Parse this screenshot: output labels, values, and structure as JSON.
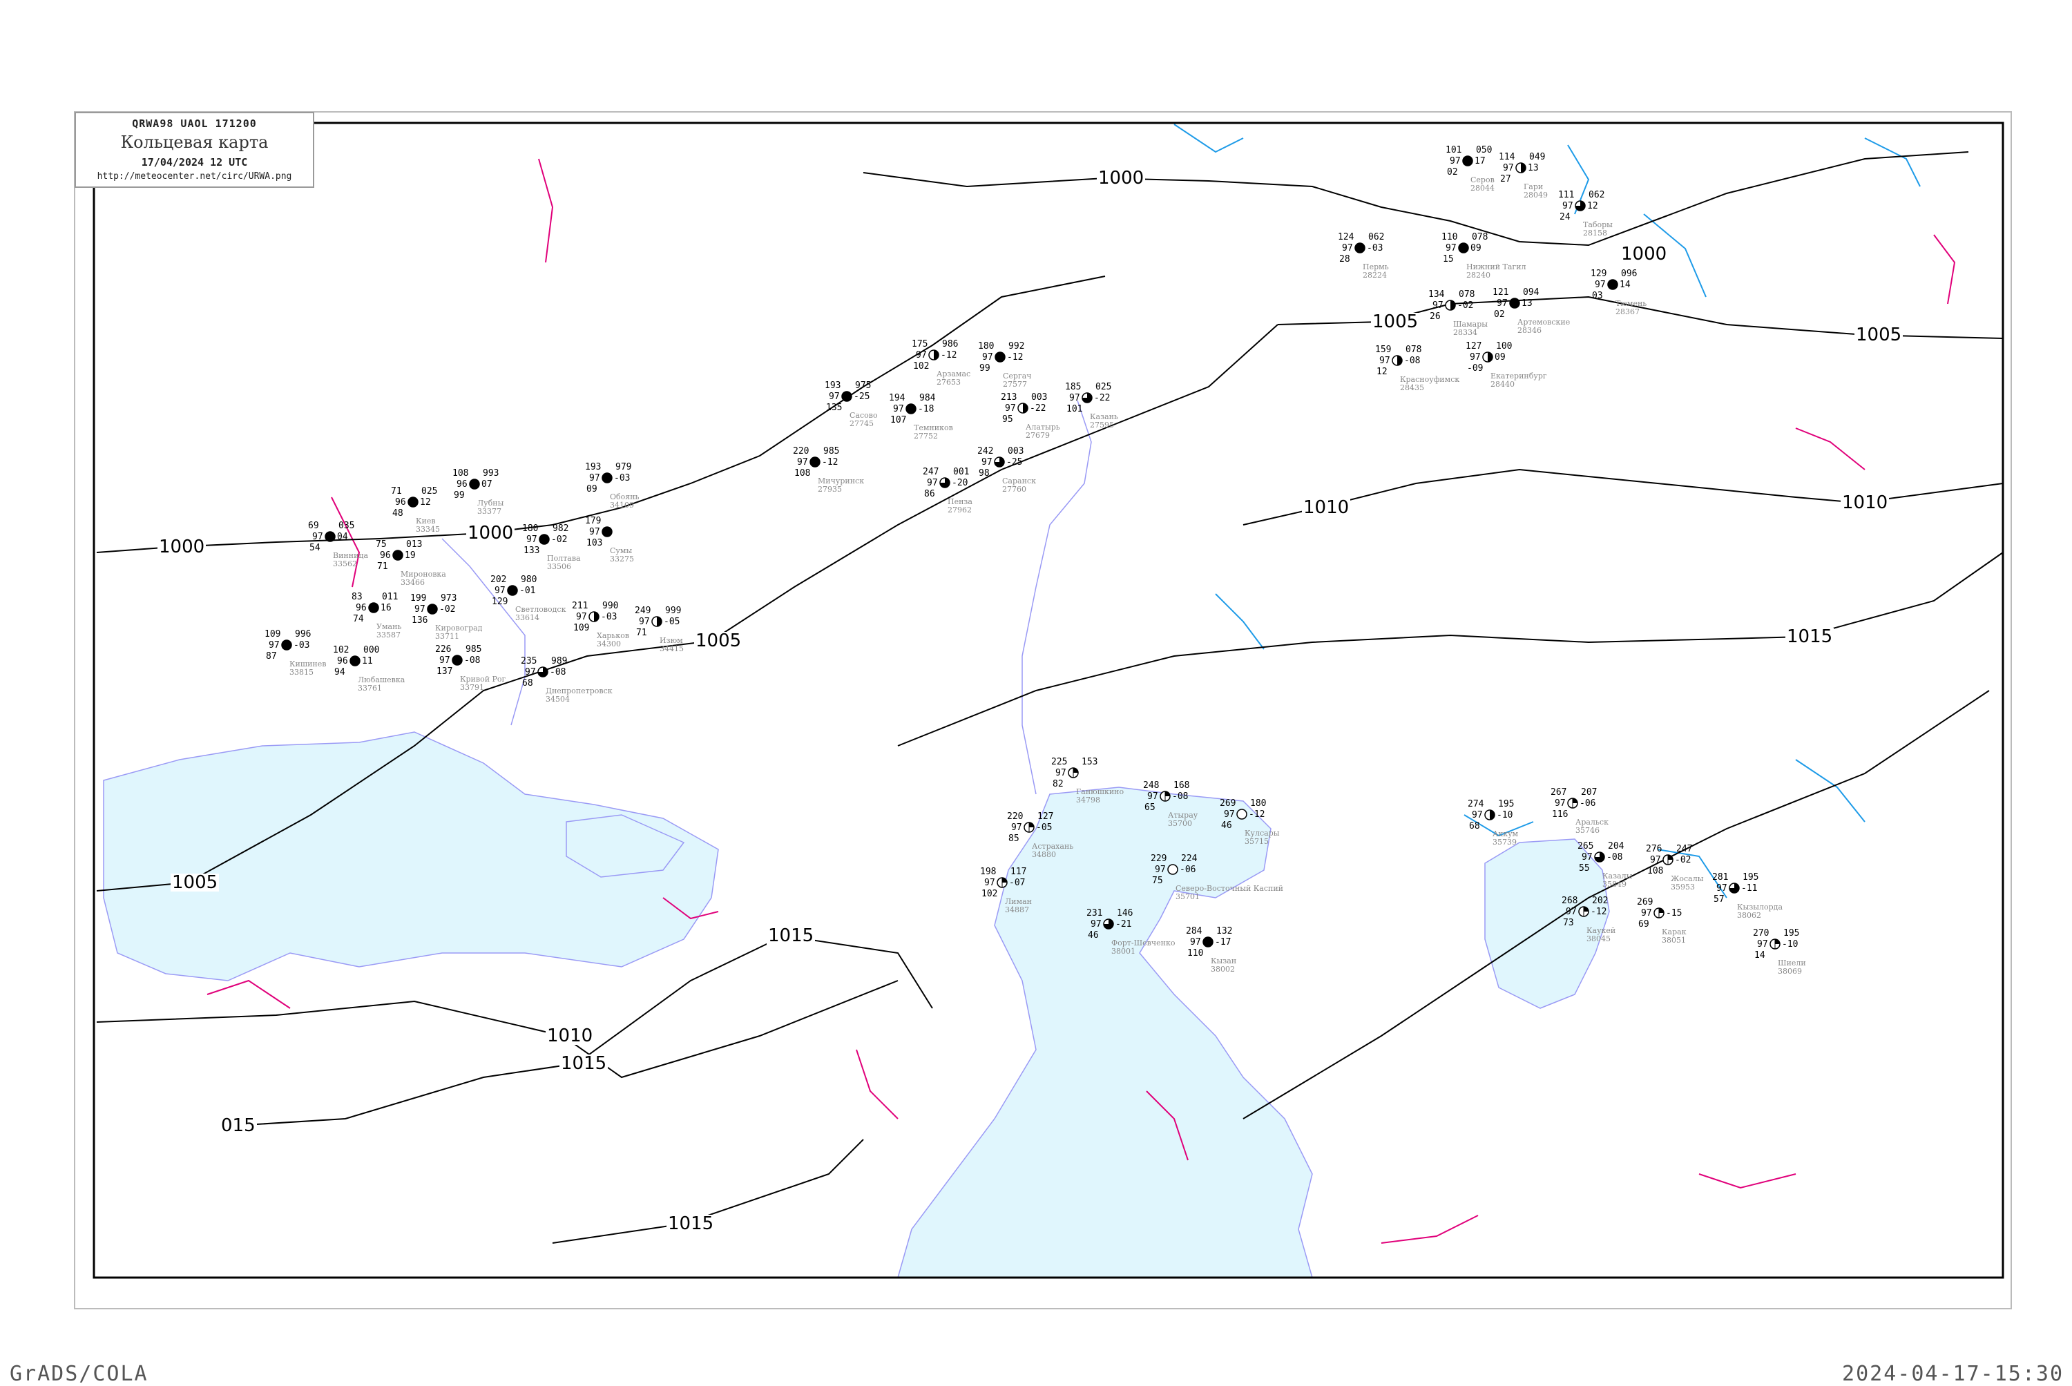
{
  "header": {
    "bulletin_code": "QRWA98   UAOL   171200",
    "title": "Кольцевая карта",
    "datetime": "17/04/2024 12 UTC",
    "url": "http://meteocenter.net/circ/URWA.png"
  },
  "footer": {
    "left_label": "GrADS/COLA",
    "right_timestamp": "2024-04-17-15:30"
  },
  "colors": {
    "isobar": "#000000",
    "isotherm_warm": "#e0007a",
    "isotherm_cold": "#1e9be8",
    "water": "#e0f6fd",
    "coast": "#9a9af5",
    "station_name": "#888888",
    "precip_marker": "#22bb33"
  },
  "isobars": [
    "1000",
    "1000",
    "1005",
    "1005",
    "1010",
    "1015",
    "1000",
    "1000",
    "1005",
    "1005",
    "1010",
    "1015",
    "1015",
    "1015",
    "015",
    "1010"
  ],
  "stations": [
    {
      "name": "Серов",
      "id": "28044",
      "t": "101",
      "v": "97",
      "d": "02",
      "p": "050",
      "dp": "17",
      "cover": "full"
    },
    {
      "name": "Гари",
      "id": "28049",
      "t": "114",
      "v": "97",
      "d": "27",
      "p": "049",
      "dp": "13",
      "cover": "half"
    },
    {
      "name": "Пермь",
      "id": "28224",
      "t": "124",
      "v": "97",
      "d": "28",
      "p": "062",
      "dp": "-03",
      "cover": "full"
    },
    {
      "name": "Нижний Тагил",
      "id": "28240",
      "t": "110",
      "v": "97",
      "d": "15",
      "p": "078",
      "dp": "09",
      "cover": "full"
    },
    {
      "name": "Таборы",
      "id": "28158",
      "t": "111",
      "v": "97",
      "d": "24",
      "p": "062",
      "dp": "12",
      "cover": "three-quarter"
    },
    {
      "name": "Тюмень",
      "id": "28367",
      "t": "129",
      "v": "97",
      "d": "03",
      "p": "096",
      "dp": "14",
      "cover": "full"
    },
    {
      "name": "Артемовские",
      "id": "28346",
      "t": "121",
      "v": "97",
      "d": "02",
      "p": "094",
      "dp": "13",
      "cover": "full"
    },
    {
      "name": "Екатеринбург",
      "id": "28440",
      "t": "127",
      "v": "97",
      "d": "-09",
      "p": "100",
      "dp": "09",
      "cover": "half"
    },
    {
      "name": "Шамары",
      "id": "28334",
      "t": "134",
      "v": "97",
      "d": "26",
      "p": "078",
      "dp": "-02",
      "cover": "half"
    },
    {
      "name": "Красноуфимск",
      "id": "28435",
      "t": "159",
      "v": "97",
      "d": "12",
      "p": "078",
      "dp": "-08",
      "cover": "half"
    },
    {
      "name": "Аральск",
      "id": "35746",
      "t": "267",
      "v": "97",
      "d": "116",
      "p": "207",
      "dp": "-06",
      "cover": "quarter"
    },
    {
      "name": "Аккум",
      "id": "35739",
      "t": "274",
      "v": "97",
      "d": "68",
      "p": "195",
      "dp": "-10",
      "cover": "half"
    },
    {
      "name": "Казалы",
      "id": "35849",
      "t": "265",
      "v": "97",
      "d": "55",
      "p": "204",
      "dp": "-08",
      "cover": "three-quarter"
    },
    {
      "name": "Жосалы",
      "id": "35953",
      "t": "276",
      "v": "97",
      "d": "108",
      "p": "247",
      "dp": "-02",
      "cover": "quarter"
    },
    {
      "name": "Кызылорда",
      "id": "38062",
      "t": "281",
      "v": "97",
      "d": "57",
      "p": "195",
      "dp": "-11",
      "cover": "three-quarter"
    },
    {
      "name": "Каукей",
      "id": "38045",
      "t": "268",
      "v": "97",
      "d": "73",
      "p": "202",
      "dp": "-12",
      "cover": "quarter"
    },
    {
      "name": "Карак",
      "id": "38051",
      "t": "269",
      "v": "97",
      "d": "69",
      "p": "",
      "dp": "-15",
      "cover": "quarter"
    },
    {
      "name": "Шиели",
      "id": "38069",
      "t": "270",
      "v": "97",
      "d": "14",
      "p": "195",
      "dp": "-10",
      "cover": "quarter"
    },
    {
      "name": "Атырау",
      "id": "35700",
      "t": "248",
      "v": "97",
      "d": "65",
      "p": "168",
      "dp": "-08",
      "cover": "quarter"
    },
    {
      "name": "Кулсары",
      "id": "35715",
      "t": "269",
      "v": "97",
      "d": "46",
      "p": "180",
      "dp": "-12",
      "cover": "empty"
    },
    {
      "name": "Северо-Восточный Каспий",
      "id": "35701",
      "t": "229",
      "v": "97",
      "d": "75",
      "p": "224",
      "dp": "-06",
      "cover": "empty"
    },
    {
      "name": "Астрахань",
      "id": "34880",
      "t": "220",
      "v": "97",
      "d": "85",
      "p": "127",
      "dp": "-05",
      "cover": "quarter"
    },
    {
      "name": "Ганюшкино",
      "id": "34798",
      "t": "225",
      "v": "97",
      "d": "82",
      "p": "153",
      "dp": "",
      "cover": "quarter"
    },
    {
      "name": "Форт-Шевченко",
      "id": "38001",
      "t": "231",
      "v": "97",
      "d": "46",
      "p": "146",
      "dp": "-21",
      "cover": "three-quarter"
    },
    {
      "name": "Кызан",
      "id": "38002",
      "t": "284",
      "v": "97",
      "d": "110",
      "p": "132",
      "dp": "-17",
      "cover": "full"
    },
    {
      "name": "Лиман",
      "id": "34887",
      "t": "198",
      "v": "97",
      "d": "102",
      "p": "117",
      "dp": "-07",
      "cover": "quarter"
    },
    {
      "name": "Киев",
      "id": "33345",
      "t": "71",
      "v": "96",
      "d": "48",
      "p": "025",
      "dp": "12",
      "cover": "full"
    },
    {
      "name": "Мироновка",
      "id": "33466",
      "t": "75",
      "v": "96",
      "d": "71",
      "p": "013",
      "dp": "19",
      "cover": "full"
    },
    {
      "name": "Винница",
      "id": "33562",
      "t": "69",
      "v": "97",
      "d": "54",
      "p": "035",
      "dp": "04",
      "cover": "full"
    },
    {
      "name": "Умань",
      "id": "33587",
      "t": "83",
      "v": "96",
      "d": "74",
      "p": "011",
      "dp": "16",
      "cover": "full"
    },
    {
      "name": "Любашевка",
      "id": "33761",
      "t": "102",
      "v": "96",
      "d": "94",
      "p": "000",
      "dp": "11",
      "cover": "full"
    },
    {
      "name": "Кишинев",
      "id": "33815",
      "t": "109",
      "v": "97",
      "d": "87",
      "p": "996",
      "dp": "-03",
      "cover": "full"
    },
    {
      "name": "Кировоград",
      "id": "33711",
      "t": "199",
      "v": "97",
      "d": "136",
      "p": "973",
      "dp": "-02",
      "cover": "full"
    },
    {
      "name": "Кривой Рог",
      "id": "33791",
      "t": "226",
      "v": "97",
      "d": "137",
      "p": "985",
      "dp": "-08",
      "cover": "full"
    },
    {
      "name": "Светловодск",
      "id": "33614",
      "t": "202",
      "v": "97",
      "d": "129",
      "p": "980",
      "dp": "-01",
      "cover": "full"
    },
    {
      "name": "Лубны",
      "id": "33377",
      "t": "108",
      "v": "96",
      "d": "99",
      "p": "993",
      "dp": "07",
      "cover": "full"
    },
    {
      "name": "Полтава",
      "id": "33506",
      "t": "180",
      "v": "97",
      "d": "133",
      "p": "982",
      "dp": "-02",
      "cover": "full"
    },
    {
      "name": "Харьков",
      "id": "34300",
      "t": "211",
      "v": "97",
      "d": "109",
      "p": "990",
      "dp": "-03",
      "cover": "half"
    },
    {
      "name": "Днепропетровск",
      "id": "34504",
      "t": "235",
      "v": "97",
      "d": "68",
      "p": "989",
      "dp": "-08",
      "cover": "three-quarter"
    },
    {
      "name": "Изюм",
      "id": "34415",
      "t": "249",
      "v": "97",
      "d": "71",
      "p": "999",
      "dp": "-05",
      "cover": "half"
    },
    {
      "name": "Сумы",
      "id": "33275",
      "t": "179",
      "v": "97",
      "d": "103",
      "p": "",
      "dp": "",
      "cover": "full"
    },
    {
      "name": "Обоянь",
      "id": "34109",
      "t": "193",
      "v": "97",
      "d": "09",
      "p": "979",
      "dp": "-03",
      "cover": "full"
    },
    {
      "name": "Арзамас",
      "id": "27653",
      "t": "175",
      "v": "97",
      "d": "102",
      "p": "986",
      "dp": "-12",
      "cover": "half"
    },
    {
      "name": "Сергач",
      "id": "27577",
      "t": "180",
      "v": "97",
      "d": "99",
      "p": "992",
      "dp": "-12",
      "cover": "full"
    },
    {
      "name": "Темников",
      "id": "27752",
      "t": "194",
      "v": "97",
      "d": "107",
      "p": "984",
      "dp": "-18",
      "cover": "full"
    },
    {
      "name": "Алатырь",
      "id": "27679",
      "t": "213",
      "v": "97",
      "d": "95",
      "p": "003",
      "dp": "-22",
      "cover": "half"
    },
    {
      "name": "Саранск",
      "id": "27760",
      "t": "242",
      "v": "97",
      "d": "98",
      "p": "003",
      "dp": "-25",
      "cover": "three-quarter"
    },
    {
      "name": "Пенза",
      "id": "27962",
      "t": "247",
      "v": "97",
      "d": "86",
      "p": "001",
      "dp": "-20",
      "cover": "three-quarter"
    },
    {
      "name": "Казань",
      "id": "27595",
      "t": "185",
      "v": "97",
      "d": "101",
      "p": "025",
      "dp": "-22",
      "cover": "three-quarter"
    },
    {
      "name": "Сасово",
      "id": "27745",
      "t": "193",
      "v": "97",
      "d": "135",
      "p": "975",
      "dp": "-25",
      "cover": "full"
    },
    {
      "name": "Мичуринск",
      "id": "27935",
      "t": "220",
      "v": "97",
      "d": "108",
      "p": "985",
      "dp": "-12",
      "cover": "full"
    }
  ]
}
